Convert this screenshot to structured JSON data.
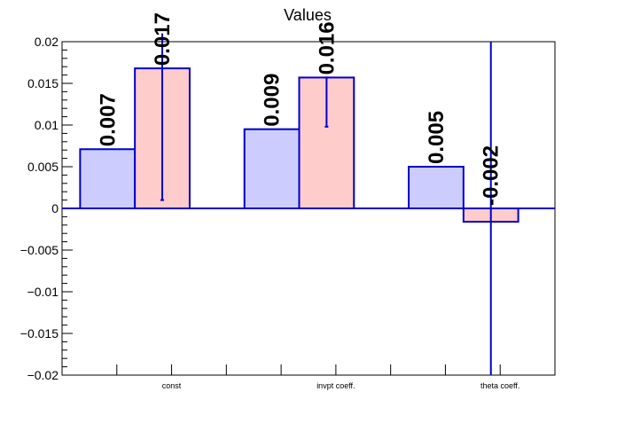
{
  "chart_data": {
    "type": "bar",
    "title": "Values",
    "xlabel": "",
    "ylabel": "",
    "categories": [
      "const",
      "invpt coeff.",
      "theta coeff."
    ],
    "ylim": [
      -0.02,
      0.02
    ],
    "yticks": [
      "0.02",
      "0.015",
      "0.01",
      "0.005",
      "0",
      "−0.005",
      "−0.01",
      "−0.015",
      "−0.02"
    ],
    "grid": false,
    "series": [
      {
        "values": [
          0.0071,
          0.0095,
          0.005
        ],
        "labels": [
          "0.007",
          "0.009",
          "0.005"
        ],
        "fill": "#ccccff",
        "stroke": "#0000cc",
        "errors": null
      },
      {
        "values": [
          0.0168,
          0.0157,
          -0.0016
        ],
        "labels": [
          "0.017",
          "0.016",
          "-0.002"
        ],
        "fill": "#ffcccc",
        "stroke": "#0000cc",
        "errors": [
          [
            0.001,
            0.021
          ],
          [
            0.0098,
            0.0157
          ],
          [
            -0.02,
            0.02
          ]
        ]
      }
    ],
    "axis_color": "#000000",
    "zero_line_color": "#0000cc"
  }
}
